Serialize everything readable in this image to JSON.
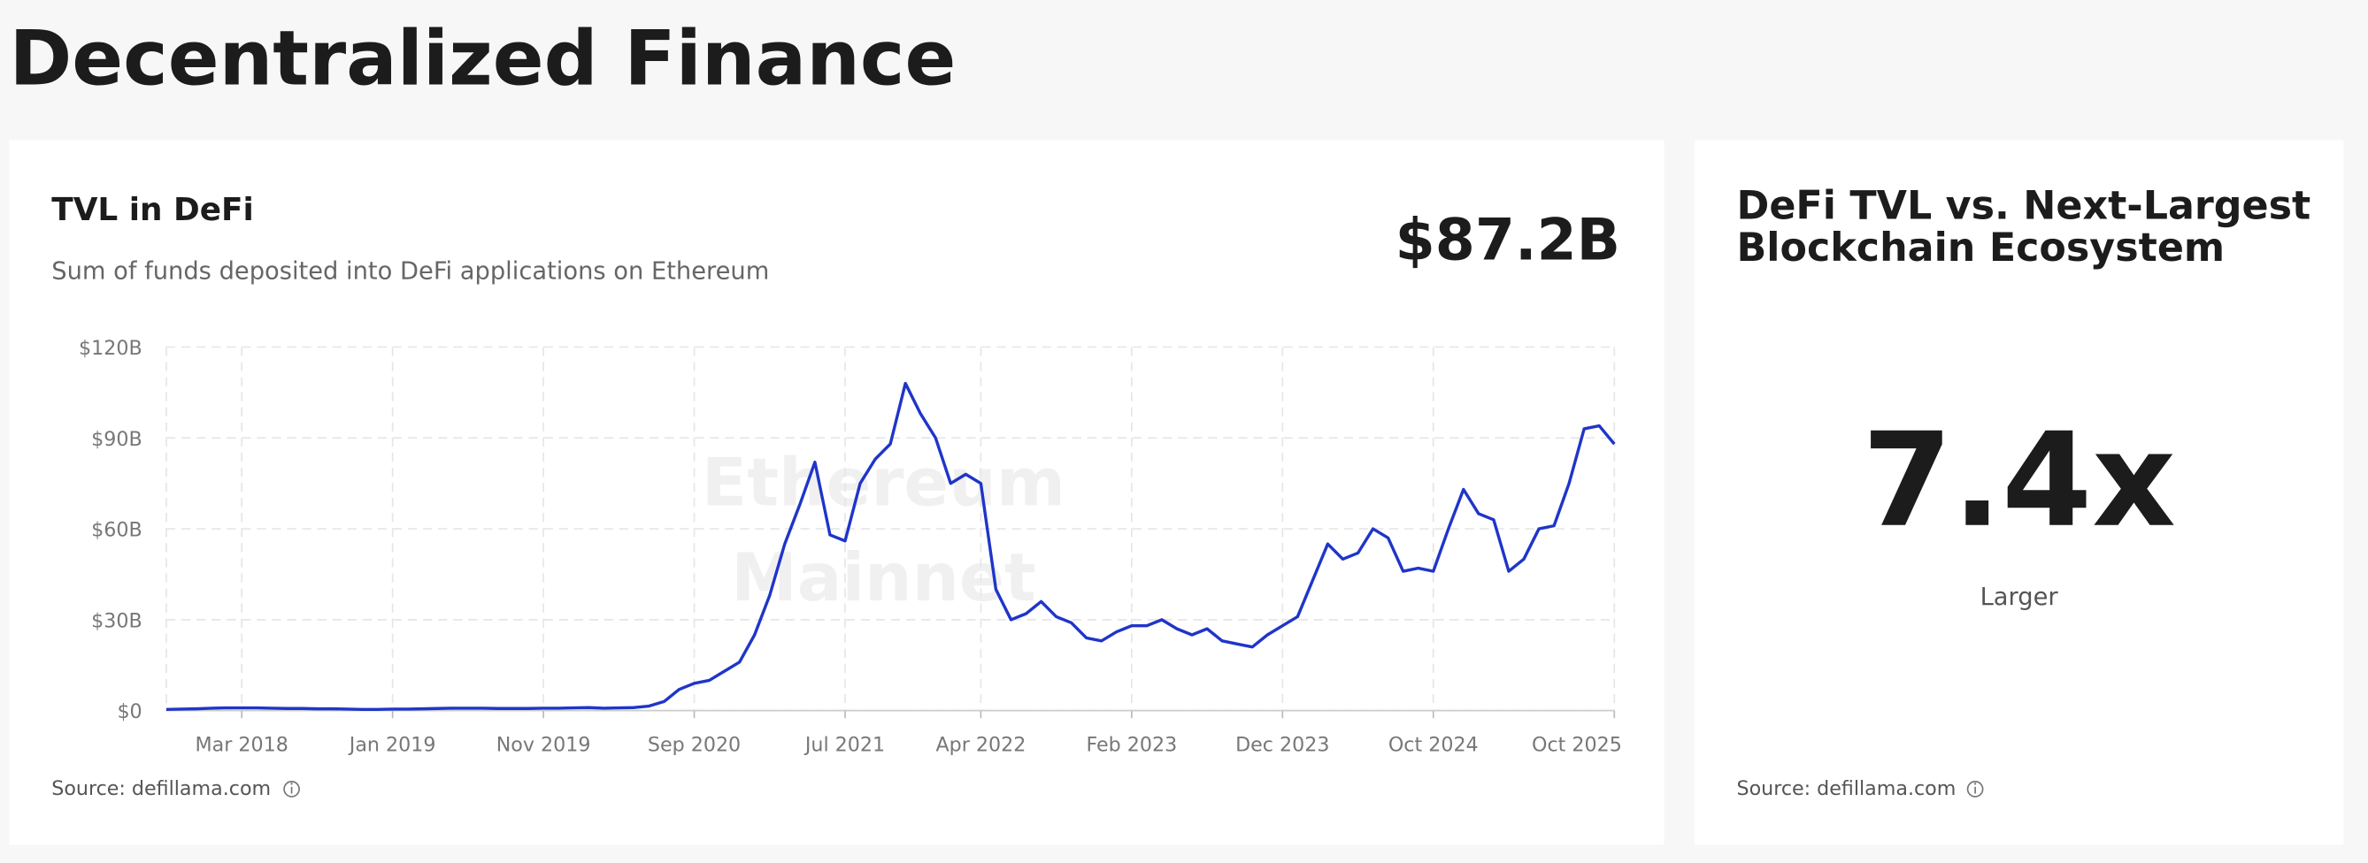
{
  "page_title": "Decentralized Finance",
  "tvl_card": {
    "title": "TVL in DeFi",
    "subtitle": "Sum of funds deposited into DeFi applications on Ethereum",
    "headline": "$87.2B",
    "watermark": [
      "Ethereum",
      "Mainnet"
    ],
    "source": "Source: defillama.com"
  },
  "ratio_card": {
    "title": [
      "DeFi TVL vs. Next-Largest",
      "Blockchain Ecosystem"
    ],
    "headline": "7.4x",
    "caption": "Larger",
    "source": "Source: defillama.com"
  },
  "chart_data": {
    "type": "line",
    "color": "#1f35c9",
    "grid": true,
    "xlim": [
      "2017-10",
      "2025-10"
    ],
    "xticks": [
      {
        "value": "2018-03",
        "label": "Mar 2018"
      },
      {
        "value": "2019-01",
        "label": "Jan 2019"
      },
      {
        "value": "2019-11",
        "label": "Nov 2019"
      },
      {
        "value": "2020-09",
        "label": "Sep 2020"
      },
      {
        "value": "2021-07",
        "label": "Jul 2021"
      },
      {
        "value": "2022-04",
        "label": "Apr 2022"
      },
      {
        "value": "2023-02",
        "label": "Feb 2023"
      },
      {
        "value": "2023-12",
        "label": "Dec 2023"
      },
      {
        "value": "2024-10",
        "label": "Oct 2024"
      },
      {
        "value": "2025-10",
        "label": "Oct 2025"
      }
    ],
    "ylim": [
      0,
      120
    ],
    "yticks": [
      {
        "value": 0,
        "label": "$0"
      },
      {
        "value": 30,
        "label": "$30B"
      },
      {
        "value": 60,
        "label": "$60B"
      },
      {
        "value": 90,
        "label": "$90B"
      },
      {
        "value": 120,
        "label": "$120B"
      }
    ],
    "x": [
      "2017-10",
      "2017-11",
      "2017-12",
      "2018-01",
      "2018-02",
      "2018-03",
      "2018-04",
      "2018-05",
      "2018-06",
      "2018-07",
      "2018-08",
      "2018-09",
      "2018-10",
      "2018-11",
      "2018-12",
      "2019-01",
      "2019-02",
      "2019-03",
      "2019-04",
      "2019-05",
      "2019-06",
      "2019-07",
      "2019-08",
      "2019-09",
      "2019-10",
      "2019-11",
      "2019-12",
      "2020-01",
      "2020-02",
      "2020-03",
      "2020-04",
      "2020-05",
      "2020-06",
      "2020-07",
      "2020-08",
      "2020-09",
      "2020-10",
      "2020-11",
      "2020-12",
      "2021-01",
      "2021-02",
      "2021-03",
      "2021-04",
      "2021-05",
      "2021-06",
      "2021-07",
      "2021-08",
      "2021-09",
      "2021-10",
      "2021-11",
      "2021-12",
      "2022-01",
      "2022-02",
      "2022-03",
      "2022-04",
      "2022-05",
      "2022-06",
      "2022-07",
      "2022-08",
      "2022-09",
      "2022-10",
      "2022-11",
      "2022-12",
      "2023-01",
      "2023-02",
      "2023-03",
      "2023-04",
      "2023-05",
      "2023-06",
      "2023-07",
      "2023-08",
      "2023-09",
      "2023-10",
      "2023-11",
      "2023-12",
      "2024-01",
      "2024-02",
      "2024-03",
      "2024-04",
      "2024-05",
      "2024-06",
      "2024-07",
      "2024-08",
      "2024-09",
      "2024-10",
      "2024-11",
      "2024-12",
      "2025-01",
      "2025-02",
      "2025-03",
      "2025-04",
      "2025-05",
      "2025-06",
      "2025-07",
      "2025-08",
      "2025-09",
      "2025-10"
    ],
    "values": [
      0.4,
      0.5,
      0.6,
      0.8,
      0.9,
      0.9,
      0.9,
      0.8,
      0.7,
      0.7,
      0.6,
      0.6,
      0.5,
      0.4,
      0.4,
      0.5,
      0.5,
      0.6,
      0.7,
      0.8,
      0.8,
      0.8,
      0.7,
      0.7,
      0.7,
      0.8,
      0.8,
      0.9,
      1.0,
      0.8,
      0.9,
      1.0,
      1.5,
      3,
      7,
      9,
      10,
      13,
      16,
      25,
      38,
      55,
      68,
      82,
      58,
      56,
      75,
      83,
      88,
      108,
      98,
      90,
      75,
      78,
      75,
      40,
      30,
      32,
      36,
      31,
      29,
      24,
      23,
      26,
      28,
      28,
      30,
      27,
      25,
      27,
      23,
      22,
      21,
      25,
      28,
      31,
      43,
      55,
      50,
      52,
      60,
      57,
      46,
      47,
      46,
      60,
      73,
      65,
      63,
      46,
      50,
      60,
      61,
      75,
      93,
      94,
      88
    ]
  }
}
